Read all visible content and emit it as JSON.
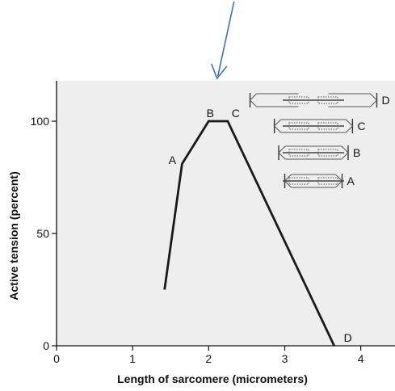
{
  "colors": {
    "plot_background": "#eeeeee",
    "line": "#1a1a1a",
    "arrow": "#3d6fb6",
    "filament": "#555555"
  },
  "chart_data": {
    "type": "line",
    "title": "",
    "xlabel": "Length of sarcomere (micrometers)",
    "ylabel": "Active tension (percent)",
    "xlim": [
      0,
      4.45
    ],
    "ylim": [
      0,
      118
    ],
    "xticks": [
      0,
      1,
      2,
      3,
      4
    ],
    "xtick_labels": [
      "0",
      "1",
      "2",
      "3",
      "4"
    ],
    "yticks": [
      0,
      50,
      100
    ],
    "ytick_labels": [
      "0",
      "50",
      "100"
    ],
    "grid": false,
    "series": [
      {
        "x": [
          1.42,
          1.65,
          2.0,
          2.25,
          3.65
        ],
        "y": [
          25,
          81,
          100,
          100,
          0
        ]
      }
    ],
    "point_labels": [
      {
        "text": "A",
        "x": 1.65,
        "y": 81
      },
      {
        "text": "B",
        "x": 2.0,
        "y": 100
      },
      {
        "text": "C",
        "x": 2.25,
        "y": 100
      },
      {
        "text": "D",
        "x": 3.65,
        "y": 0
      }
    ],
    "annotation_arrow": {
      "points_to_x": 2.1
    },
    "sarcomere_diagrams": [
      {
        "label": "D",
        "length": 3.65
      },
      {
        "label": "C",
        "length": 2.25
      },
      {
        "label": "B",
        "length": 2.0
      },
      {
        "label": "A",
        "length": 1.65
      }
    ]
  }
}
